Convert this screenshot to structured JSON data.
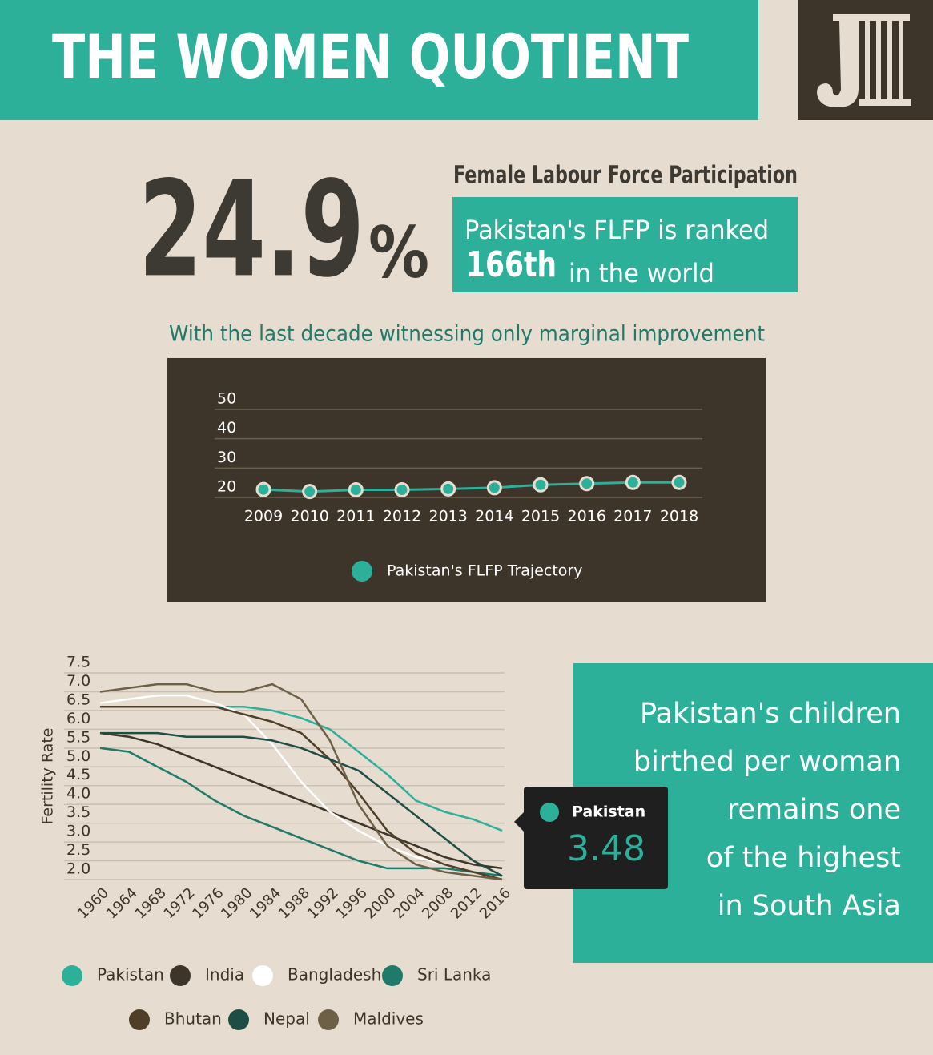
{
  "header": {
    "title": "THE WOMEN QUOTIENT"
  },
  "stat": {
    "value": "24.9",
    "unit": "%",
    "label": "Female Labour Force Participation",
    "rank_text": "Pakistan's FLFP is ranked",
    "rank": "166th",
    "rank_suffix": "in the world"
  },
  "subtitle": "With the last decade witnessing only marginal improvement",
  "chart_data": [
    {
      "type": "line",
      "categories": [
        "2009",
        "2010",
        "2011",
        "2012",
        "2013",
        "2014",
        "2015",
        "2016",
        "2017",
        "2018"
      ],
      "series": [
        {
          "name": "Pakistan's FLFP Trajectory",
          "color": "#2db09a",
          "values": [
            22.7,
            22.0,
            22.6,
            22.6,
            22.9,
            23.3,
            24.3,
            24.7,
            25.1,
            25.1
          ]
        }
      ],
      "ylim": [
        20,
        50
      ],
      "yticks": [
        20,
        30,
        40,
        50
      ],
      "grid": true
    },
    {
      "type": "line",
      "ylabel": "Fertility Rate",
      "x": [
        1960,
        1964,
        1968,
        1972,
        1976,
        1980,
        1984,
        1988,
        1992,
        1996,
        2000,
        2004,
        2008,
        2012,
        2016
      ],
      "xlim": [
        1960,
        2016
      ],
      "xticks": [
        1960,
        1964,
        1968,
        1972,
        1976,
        1980,
        1984,
        1988,
        1992,
        1996,
        2000,
        2004,
        2008,
        2012,
        2016
      ],
      "ylim": [
        2,
        7.5
      ],
      "yticks": [
        {
          "value": 2,
          "label": "2.0"
        },
        2.5,
        {
          "value": 3,
          "label": "3.0"
        },
        3.5,
        {
          "value": 4,
          "label": "4.0"
        },
        4.5,
        {
          "value": 5,
          "label": "5.0"
        },
        5.5,
        {
          "value": 6,
          "label": "6.0"
        },
        6.5,
        {
          "value": 7,
          "label": "7.0"
        },
        7.5
      ],
      "grid": true,
      "series": [
        {
          "name": "Pakistan",
          "color": "#2db09a",
          "values": [
            6.6,
            6.6,
            6.6,
            6.6,
            6.6,
            6.6,
            6.5,
            6.3,
            6.0,
            5.4,
            4.8,
            4.1,
            3.8,
            3.6,
            3.3
          ]
        },
        {
          "name": "India",
          "color": "#3d3529",
          "values": [
            5.9,
            5.8,
            5.6,
            5.3,
            5.0,
            4.7,
            4.4,
            4.1,
            3.8,
            3.5,
            3.2,
            2.9,
            2.6,
            2.4,
            2.3
          ]
        },
        {
          "name": "Bangladesh",
          "color": "#ffffff",
          "values": [
            6.7,
            6.8,
            6.9,
            6.9,
            6.7,
            6.4,
            5.6,
            4.6,
            3.8,
            3.3,
            2.9,
            2.6,
            2.4,
            2.2,
            2.1
          ]
        },
        {
          "name": "Sri Lanka",
          "color": "#1f7a6a",
          "values": [
            5.5,
            5.4,
            5.0,
            4.6,
            4.1,
            3.7,
            3.4,
            3.1,
            2.8,
            2.5,
            2.3,
            2.3,
            2.3,
            2.2,
            2.1
          ]
        },
        {
          "name": "Bhutan",
          "color": "#4f3f28",
          "values": [
            6.6,
            6.6,
            6.6,
            6.6,
            6.6,
            6.4,
            6.2,
            5.9,
            5.2,
            4.3,
            3.3,
            2.7,
            2.4,
            2.2,
            2.0
          ]
        },
        {
          "name": "Nepal",
          "color": "#1d4d45",
          "values": [
            5.9,
            5.9,
            5.9,
            5.8,
            5.8,
            5.8,
            5.7,
            5.5,
            5.2,
            4.9,
            4.3,
            3.7,
            3.1,
            2.5,
            2.1
          ]
        },
        {
          "name": "Maldives",
          "color": "#6e6046",
          "values": [
            7.0,
            7.1,
            7.2,
            7.2,
            7.0,
            7.0,
            7.2,
            6.8,
            5.7,
            4.0,
            2.9,
            2.4,
            2.2,
            2.1,
            2.0
          ]
        }
      ]
    }
  ],
  "tooltip": {
    "name": "Pakistan",
    "value": 3.48
  },
  "callout": {
    "lines": [
      "Pakistan's children",
      "birthed per woman",
      "remains one",
      "of the highest",
      "in South Asia"
    ]
  }
}
